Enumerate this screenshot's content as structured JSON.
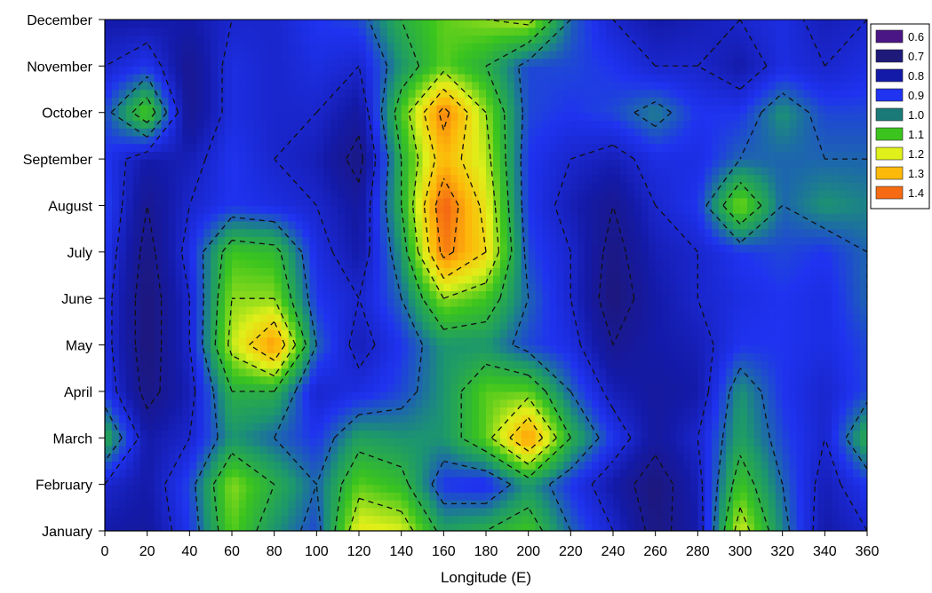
{
  "chart_data": {
    "type": "heatmap",
    "title": "",
    "xlabel": "Longitude (E)",
    "ylabel": "",
    "xlim": [
      0,
      360
    ],
    "x_ticks": [
      0,
      20,
      40,
      60,
      80,
      100,
      120,
      140,
      160,
      180,
      200,
      220,
      240,
      260,
      280,
      300,
      320,
      340,
      360
    ],
    "y_ticks": [
      "January",
      "February",
      "March",
      "April",
      "May",
      "June",
      "July",
      "August",
      "September",
      "October",
      "November",
      "December"
    ],
    "contour_dashed": true,
    "legend": {
      "placement": "top-right",
      "levels": [
        0.6,
        0.7,
        0.8,
        0.9,
        1.0,
        1.1,
        1.2,
        1.3,
        1.4
      ],
      "colors": [
        "#4a1585",
        "#1d1a7a",
        "#141aa8",
        "#1f33f0",
        "#1a7a78",
        "#3cc41e",
        "#dff01a",
        "#fdb90a",
        "#f56a12"
      ]
    },
    "z": [
      [
        0.8,
        0.78,
        0.9,
        1.12,
        1.0,
        0.92,
        1.22,
        1.2,
        1.02,
        1.05,
        1.1,
        0.95,
        0.85,
        0.72,
        0.8,
        1.2,
        0.98,
        0.8,
        0.85
      ],
      [
        0.85,
        0.8,
        0.92,
        1.15,
        1.05,
        0.95,
        1.12,
        1.08,
        0.9,
        0.88,
        1.0,
        0.9,
        0.8,
        0.7,
        0.82,
        1.1,
        0.95,
        0.82,
        0.9
      ],
      [
        1.05,
        0.8,
        0.85,
        1.0,
        0.95,
        0.9,
        1.02,
        1.0,
        1.0,
        1.12,
        1.35,
        1.05,
        0.9,
        0.78,
        0.85,
        1.02,
        0.92,
        0.85,
        1.05
      ],
      [
        0.9,
        0.72,
        0.82,
        1.05,
        1.05,
        0.85,
        0.88,
        0.92,
        1.0,
        1.12,
        1.12,
        0.95,
        0.82,
        0.78,
        0.8,
        1.0,
        0.9,
        0.85,
        0.92
      ],
      [
        0.88,
        0.7,
        0.85,
        1.18,
        1.35,
        0.95,
        0.82,
        0.9,
        1.0,
        1.0,
        0.92,
        0.88,
        0.75,
        0.8,
        0.82,
        0.9,
        0.9,
        0.88,
        0.92
      ],
      [
        0.88,
        0.7,
        0.85,
        1.15,
        1.15,
        0.9,
        0.85,
        0.95,
        1.15,
        1.1,
        0.95,
        0.85,
        0.7,
        0.8,
        0.85,
        0.88,
        0.9,
        0.88,
        0.95
      ],
      [
        0.9,
        0.72,
        0.88,
        1.1,
        1.08,
        0.88,
        0.8,
        1.0,
        1.38,
        1.25,
        0.92,
        0.85,
        0.72,
        0.82,
        0.85,
        0.9,
        0.92,
        0.9,
        0.95
      ],
      [
        0.92,
        0.75,
        0.85,
        0.9,
        0.88,
        0.85,
        0.78,
        1.05,
        1.42,
        1.22,
        0.9,
        0.82,
        0.75,
        0.85,
        0.9,
        1.15,
        0.95,
        1.0,
        0.98
      ],
      [
        0.9,
        0.8,
        0.82,
        0.9,
        0.85,
        0.82,
        0.72,
        1.05,
        1.3,
        1.18,
        0.9,
        0.85,
        0.82,
        0.88,
        0.88,
        0.95,
        0.95,
        0.95,
        0.95
      ],
      [
        0.92,
        1.12,
        0.75,
        0.88,
        0.85,
        0.85,
        0.78,
        1.1,
        1.38,
        1.15,
        0.92,
        0.9,
        0.92,
        0.98,
        0.9,
        0.9,
        1.0,
        0.92,
        0.92
      ],
      [
        0.85,
        0.9,
        0.75,
        0.88,
        0.85,
        0.88,
        0.85,
        1.0,
        1.12,
        1.05,
        0.92,
        0.92,
        0.9,
        0.85,
        0.85,
        0.8,
        0.88,
        0.85,
        0.88
      ],
      [
        0.8,
        0.8,
        0.8,
        0.85,
        0.85,
        0.9,
        0.92,
        1.05,
        1.12,
        1.15,
        1.18,
        0.95,
        0.85,
        0.8,
        0.82,
        0.85,
        0.88,
        0.82,
        0.85
      ]
    ]
  }
}
